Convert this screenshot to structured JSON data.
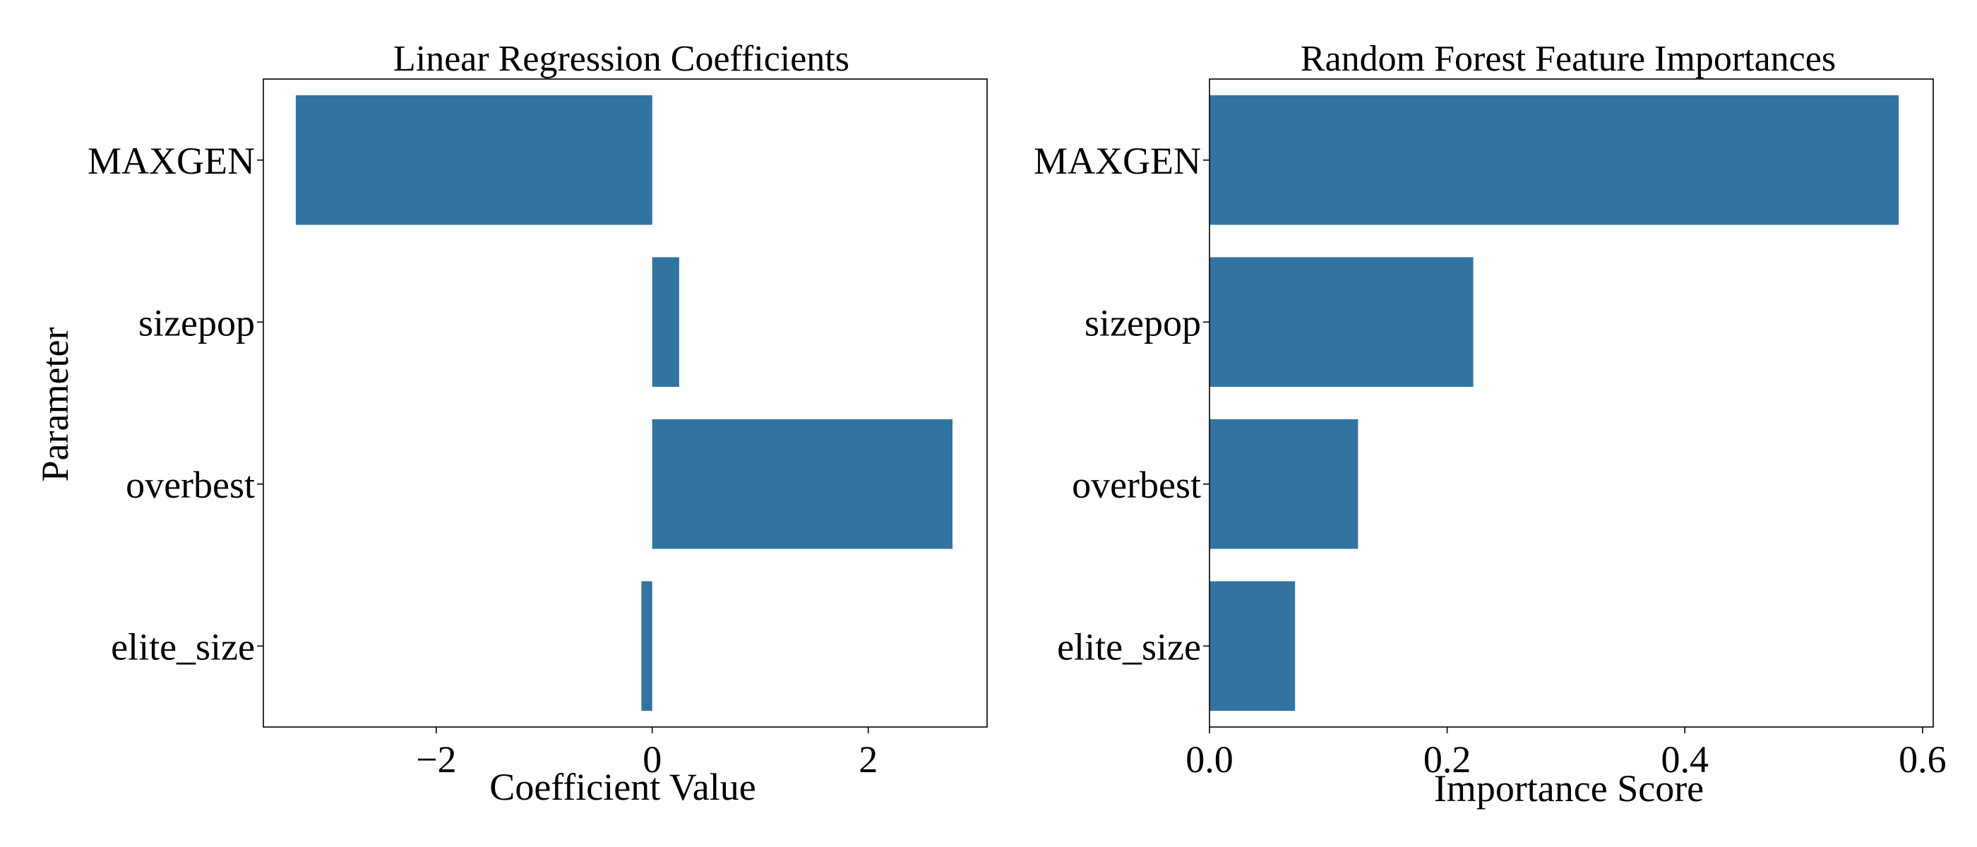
{
  "chart_data": [
    {
      "type": "bar",
      "orientation": "horizontal",
      "title": "Linear Regression Coefficients",
      "xlabel": "Coefficient Value",
      "ylabel": "Parameter",
      "categories": [
        "MAXGEN",
        "sizepop",
        "overbest",
        "elite_size"
      ],
      "values": [
        -3.3,
        0.25,
        2.78,
        -0.1
      ],
      "xlim": [
        -3.6,
        3.1
      ],
      "xticks": [
        -2,
        0,
        2
      ],
      "xtick_labels": [
        "−2",
        "0",
        "2"
      ],
      "bar_color": "#3274a1",
      "grid": false
    },
    {
      "type": "bar",
      "orientation": "horizontal",
      "title": "Random Forest Feature Importances",
      "xlabel": "Importance Score",
      "ylabel": "",
      "categories": [
        "MAXGEN",
        "sizepop",
        "overbest",
        "elite_size"
      ],
      "values": [
        0.58,
        0.222,
        0.125,
        0.072
      ],
      "xlim": [
        0,
        0.609
      ],
      "xticks": [
        0.0,
        0.2,
        0.4,
        0.6
      ],
      "xtick_labels": [
        "0.0",
        "0.2",
        "0.4",
        "0.6"
      ],
      "bar_color": "#3274a1",
      "grid": false
    }
  ]
}
